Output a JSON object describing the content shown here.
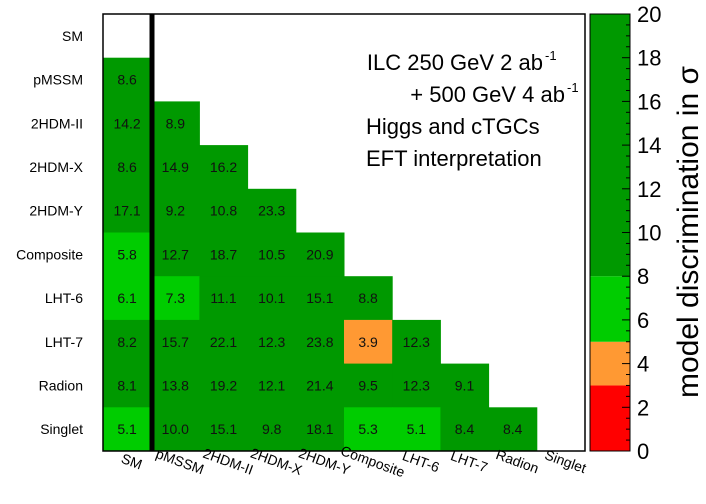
{
  "chart_data": {
    "type": "heatmap",
    "row_labels": [
      "SM",
      "pMSSM",
      "2HDM-II",
      "2HDM-X",
      "2HDM-Y",
      "Composite",
      "LHT-6",
      "LHT-7",
      "Radion",
      "Singlet"
    ],
    "col_labels": [
      "SM",
      "pMSSM",
      "2HDM-II",
      "2HDM-X",
      "2HDM-Y",
      "Composite",
      "LHT-6",
      "LHT-7",
      "Radion",
      "Singlet"
    ],
    "values": [
      [],
      [
        8.6
      ],
      [
        14.2,
        8.9
      ],
      [
        8.6,
        14.9,
        16.2
      ],
      [
        17.1,
        9.2,
        10.8,
        23.3
      ],
      [
        5.8,
        12.7,
        18.7,
        10.5,
        20.9
      ],
      [
        6.1,
        7.3,
        11.1,
        10.1,
        15.1,
        8.8
      ],
      [
        8.2,
        15.7,
        22.1,
        12.3,
        23.8,
        3.9,
        12.3
      ],
      [
        8.1,
        13.8,
        19.2,
        12.1,
        21.4,
        9.5,
        12.3,
        9.1
      ],
      [
        5.1,
        10.0,
        15.1,
        9.8,
        18.1,
        5.3,
        5.1,
        8.4,
        8.4
      ]
    ],
    "annotation": {
      "line1": "ILC 250 GeV 2 ab",
      "line1_sup": "-1",
      "line2": "+ 500 GeV 4 ab",
      "line2_sup": "-1",
      "line3": "Higgs and cTGCs",
      "line4": "EFT interpretation"
    },
    "colorbar": {
      "title": "model discrimination in σ",
      "range": [
        0,
        20
      ],
      "ticks": [
        0,
        2,
        4,
        6,
        8,
        10,
        12,
        14,
        16,
        18,
        20
      ],
      "bands": [
        {
          "min": 0,
          "max": 3,
          "color": "#ff0000"
        },
        {
          "min": 3,
          "max": 5,
          "color": "#ff9933"
        },
        {
          "min": 5,
          "max": 8,
          "color": "#00cc00"
        },
        {
          "min": 8,
          "max": 20,
          "color": "#009900"
        }
      ]
    }
  }
}
